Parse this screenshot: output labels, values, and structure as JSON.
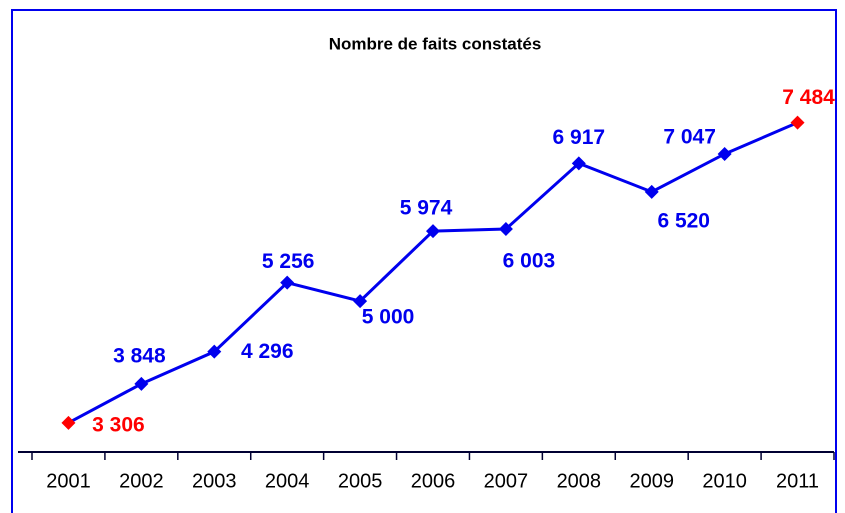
{
  "chart_data": {
    "type": "line",
    "title": "Nombre de faits constatés",
    "categories": [
      "2001",
      "2002",
      "2003",
      "2004",
      "2005",
      "2006",
      "2007",
      "2008",
      "2009",
      "2010",
      "2011"
    ],
    "values": [
      3306,
      3848,
      4296,
      5256,
      5000,
      5974,
      6003,
      6917,
      6520,
      7047,
      7484
    ],
    "value_labels": [
      "3 306",
      "3 848",
      "4 296",
      "5 256",
      "5 000",
      "5 974",
      "6 003",
      "6 917",
      "6 520",
      "7 047",
      "7 484"
    ],
    "color": "#0000ee",
    "point_colors": [
      "#ff0000",
      "#0000ee",
      "#0000ee",
      "#0000ee",
      "#0000ee",
      "#0000ee",
      "#0000ee",
      "#0000ee",
      "#0000ee",
      "#0000ee",
      "#ff0000"
    ],
    "ylim": [
      2900,
      8800
    ]
  }
}
